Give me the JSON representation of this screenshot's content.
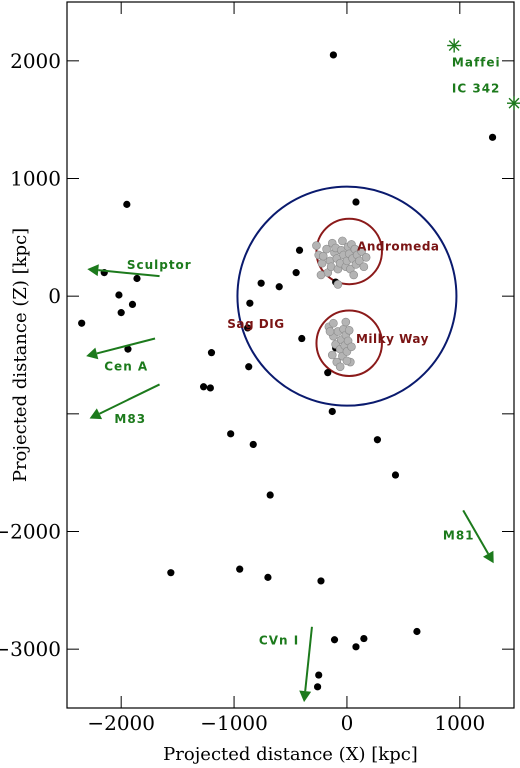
{
  "chart_data": {
    "type": "scatter",
    "xlabel": "Projected distance (X) [kpc]",
    "ylabel": "Projected distance (Z) [kpc]",
    "xlim": [
      -2480,
      1480
    ],
    "ylim": [
      -3500,
      2500
    ],
    "x_ticks": [
      {
        "value": -2000,
        "label": "−2000"
      },
      {
        "value": -1000,
        "label": "−1000"
      },
      {
        "value": 0,
        "label": "0"
      },
      {
        "value": 1000,
        "label": "1000"
      }
    ],
    "y_ticks": [
      {
        "value": 2000,
        "label": "2000"
      },
      {
        "value": 1000,
        "label": "1000"
      },
      {
        "value": 0,
        "label": "0"
      },
      {
        "value": -1000,
        "label": ""
      },
      {
        "value": -2000,
        "label": "−2000"
      },
      {
        "value": -3000,
        "label": "−3000"
      }
    ],
    "colors": {
      "black_points": "#000000",
      "grey_points": "#b4b4b4",
      "large_circle": "#0a1a6e",
      "small_circles": "#8b1a1a",
      "groups": "#1c7a1c"
    },
    "series": [
      {
        "kind": "black-dots",
        "points": [
          [
            -120,
            2050
          ],
          [
            1290,
            1350
          ],
          [
            80,
            800
          ],
          [
            -1950,
            780
          ],
          [
            -2150,
            200
          ],
          [
            -1860,
            150
          ],
          [
            -2020,
            10
          ],
          [
            -1900,
            -70
          ],
          [
            -2000,
            -140
          ],
          [
            -2350,
            -230
          ],
          [
            -1940,
            -450
          ],
          [
            -760,
            110
          ],
          [
            -600,
            80
          ],
          [
            -450,
            200
          ],
          [
            -420,
            390
          ],
          [
            -860,
            -60
          ],
          [
            -880,
            -270
          ],
          [
            -1200,
            -480
          ],
          [
            -870,
            -600
          ],
          [
            -1270,
            -770
          ],
          [
            -1210,
            -780
          ],
          [
            -1030,
            -1170
          ],
          [
            -830,
            -1260
          ],
          [
            -400,
            -360
          ],
          [
            -170,
            -650
          ],
          [
            -130,
            -980
          ],
          [
            -100,
            -440
          ],
          [
            -100,
            120
          ],
          [
            270,
            -1220
          ],
          [
            430,
            -1520
          ],
          [
            -680,
            -1690
          ],
          [
            -1560,
            -2350
          ],
          [
            -950,
            -2320
          ],
          [
            -700,
            -2390
          ],
          [
            -230,
            -2420
          ],
          [
            620,
            -2850
          ],
          [
            150,
            -2910
          ],
          [
            80,
            -2980
          ],
          [
            -110,
            -2920
          ],
          [
            -250,
            -3220
          ],
          [
            -260,
            -3320
          ]
        ]
      },
      {
        "kind": "grey-dots",
        "points": [
          [
            -270,
            430
          ],
          [
            -250,
            350
          ],
          [
            -220,
            280
          ],
          [
            -210,
            340
          ],
          [
            -180,
            400
          ],
          [
            -170,
            200
          ],
          [
            -150,
            300
          ],
          [
            -140,
            250
          ],
          [
            -130,
            450
          ],
          [
            -110,
            370
          ],
          [
            -100,
            410
          ],
          [
            -90,
            320
          ],
          [
            -80,
            230
          ],
          [
            -60,
            280
          ],
          [
            -50,
            390
          ],
          [
            -40,
            470
          ],
          [
            -30,
            350
          ],
          [
            -10,
            250
          ],
          [
            0,
            300
          ],
          [
            10,
            420
          ],
          [
            20,
            360
          ],
          [
            30,
            230
          ],
          [
            40,
            440
          ],
          [
            50,
            320
          ],
          [
            70,
            400
          ],
          [
            80,
            270
          ],
          [
            90,
            350
          ],
          [
            110,
            300
          ],
          [
            130,
            380
          ],
          [
            150,
            250
          ],
          [
            170,
            330
          ],
          [
            -80,
            100
          ],
          [
            -230,
            180
          ],
          [
            60,
            180
          ],
          [
            -160,
            -260
          ],
          [
            -120,
            -340
          ],
          [
            -100,
            -410
          ],
          [
            -80,
            -300
          ],
          [
            -60,
            -450
          ],
          [
            -50,
            -370
          ],
          [
            -40,
            -510
          ],
          [
            -30,
            -280
          ],
          [
            -20,
            -420
          ],
          [
            -10,
            -330
          ],
          [
            0,
            -470
          ],
          [
            10,
            -380
          ],
          [
            20,
            -290
          ],
          [
            30,
            -560
          ],
          [
            40,
            -430
          ],
          [
            -90,
            -560
          ],
          [
            -130,
            -500
          ],
          [
            -150,
            -300
          ],
          [
            -120,
            -230
          ],
          [
            -10,
            -220
          ],
          [
            0,
            -550
          ],
          [
            -60,
            -600
          ]
        ]
      }
    ],
    "reference_circles": [
      {
        "cx": 0,
        "cy": 0,
        "r": 970,
        "color": "#0a1a6e"
      },
      {
        "cx": 20,
        "cy": 380,
        "r": 290,
        "color": "#8b1a1a"
      },
      {
        "cx": 20,
        "cy": -400,
        "r": 290,
        "color": "#8b1a1a"
      }
    ],
    "circle_labels": [
      {
        "text": "Andromeda",
        "x": 90,
        "y": 390
      },
      {
        "text": "Sag DIG",
        "x": -1060,
        "y": -270
      },
      {
        "text": "Milky Way",
        "x": 80,
        "y": -400
      }
    ],
    "group_markers": [
      {
        "text": "Maffei",
        "x": 950,
        "y": 2130,
        "label_x": 930,
        "label_y": 1950
      },
      {
        "text": "IC 342",
        "x": 1480,
        "y": 1640,
        "label_x": 930,
        "label_y": 1730
      }
    ],
    "group_arrows": [
      {
        "text": "Sculptor",
        "from": [
          -1660,
          170
        ],
        "to": [
          -2300,
          230
        ],
        "label_x": -1950,
        "label_y": 230
      },
      {
        "text": "Cen A",
        "from": [
          -1700,
          -360
        ],
        "to": [
          -2310,
          -510
        ],
        "label_x": -2150,
        "label_y": -630
      },
      {
        "text": "M83",
        "from": [
          -1660,
          -750
        ],
        "to": [
          -2280,
          -1040
        ],
        "label_x": -2060,
        "label_y": -1080
      },
      {
        "text": "M81",
        "from": [
          1030,
          -1820
        ],
        "to": [
          1300,
          -2270
        ],
        "label_x": 850,
        "label_y": -2070
      },
      {
        "text": "CVn I",
        "from": [
          -310,
          -2810
        ],
        "to": [
          -380,
          -3450
        ],
        "label_x": -780,
        "label_y": -2960
      }
    ]
  }
}
